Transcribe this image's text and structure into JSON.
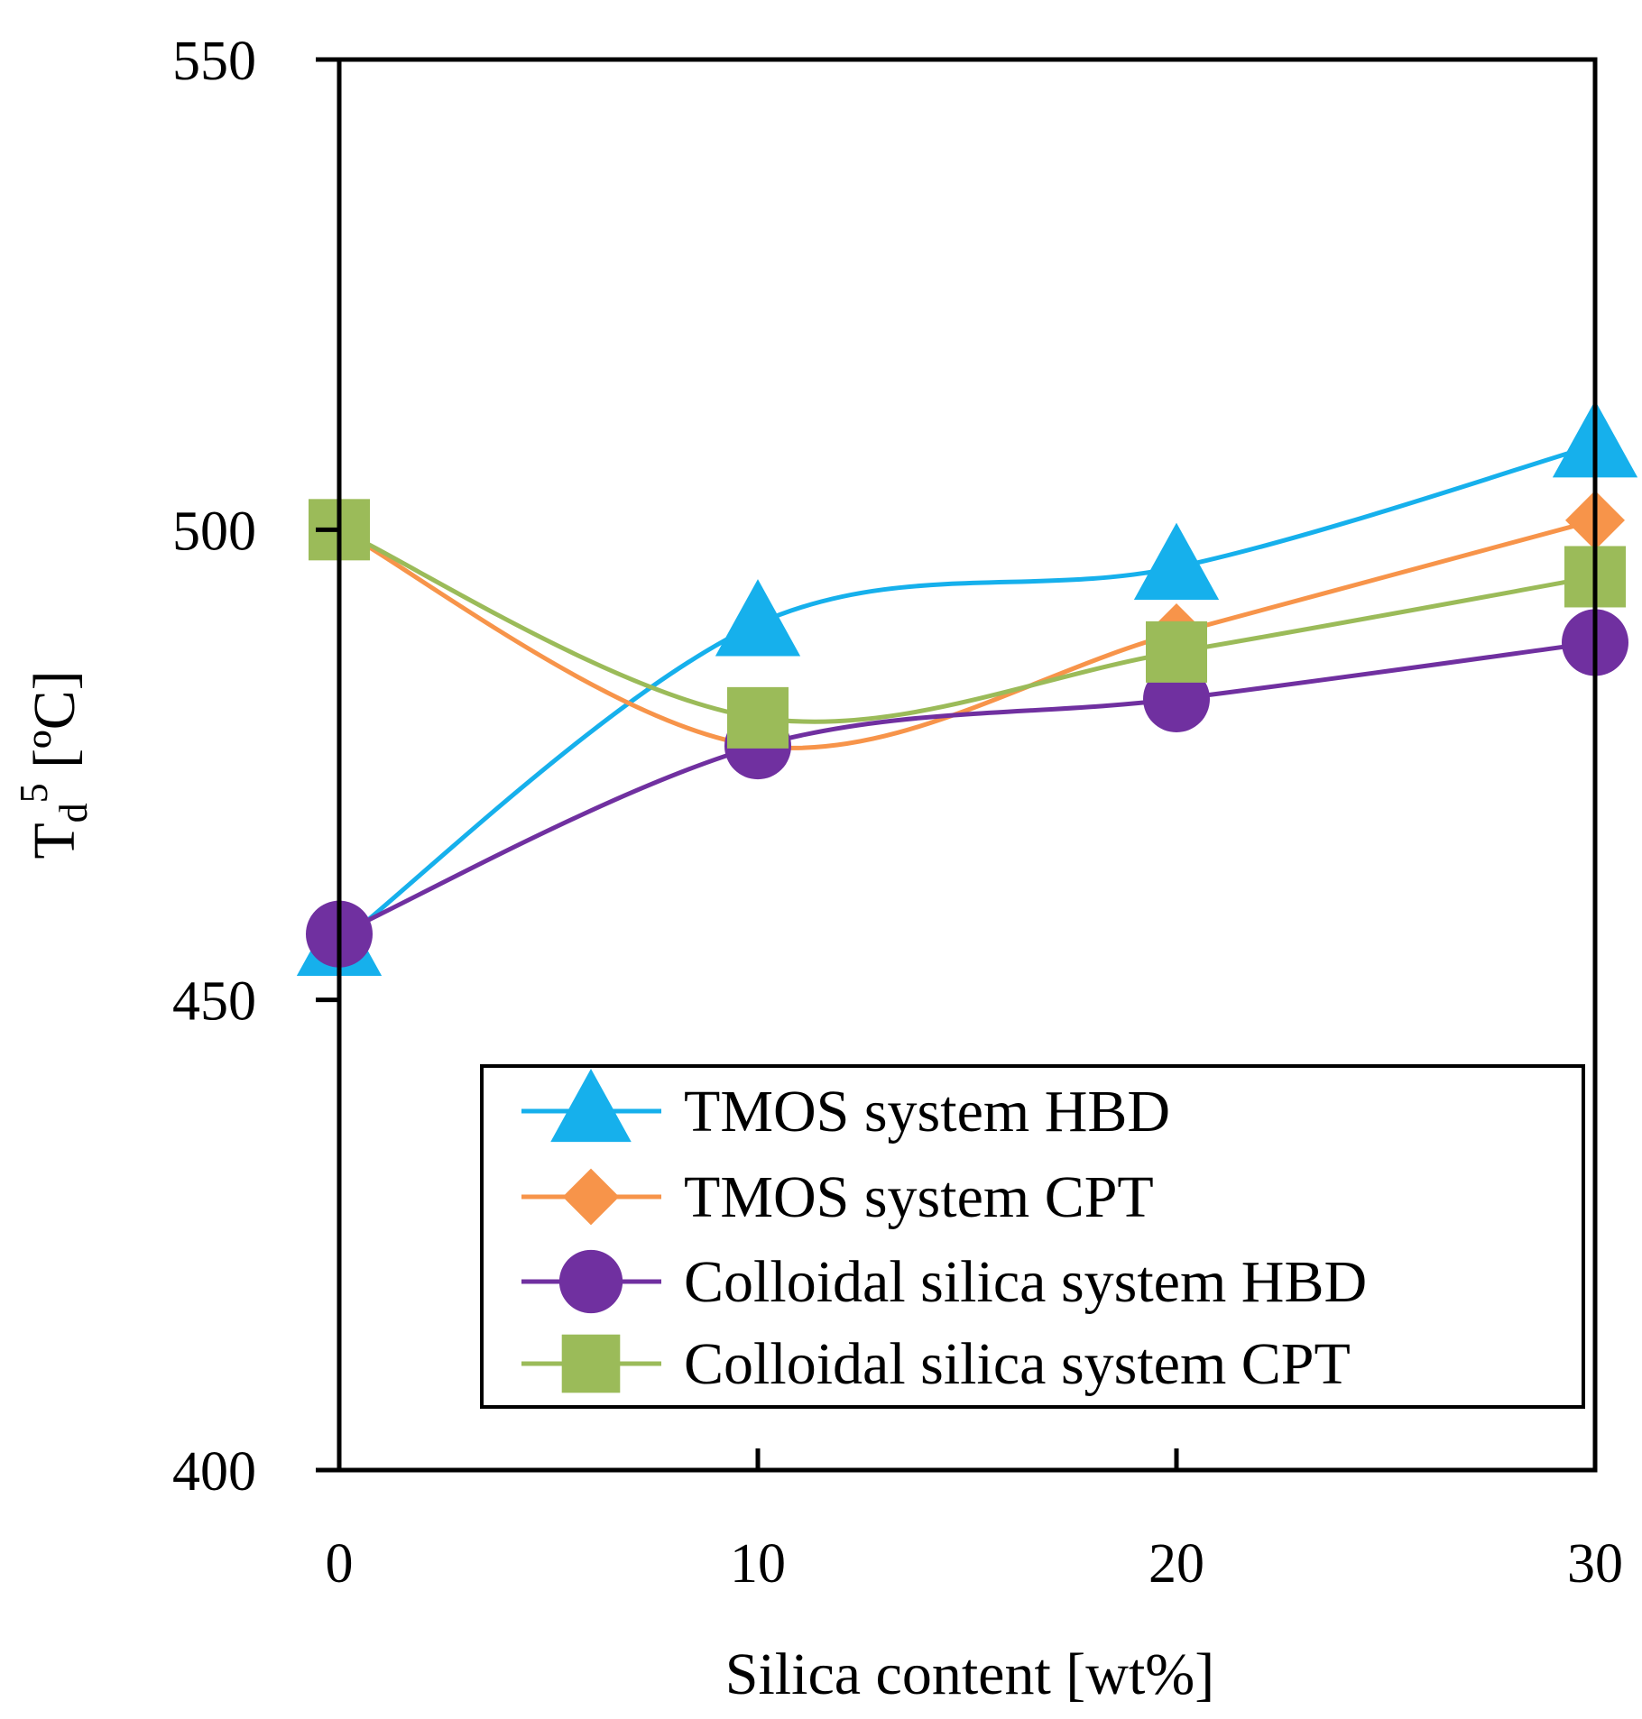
{
  "chart_data": {
    "type": "line",
    "title": "",
    "xlabel": "Silica content [wt%]",
    "ylabel_main": "T",
    "ylabel_sub": "d",
    "ylabel_sup": "5",
    "ylabel_unit": " [ºC]",
    "x": [
      0,
      10,
      20,
      30
    ],
    "xlim": [
      0,
      30
    ],
    "ylim": [
      400,
      550
    ],
    "xticks": [
      "0",
      "10",
      "20",
      "30"
    ],
    "yticks": [
      "400",
      "450",
      "500",
      "550"
    ],
    "grid": false,
    "legend_position": "bottom-right",
    "series": [
      {
        "name": "TMOS system HBD",
        "values": [
          456,
          490,
          496,
          509
        ],
        "color": "#16b0ec",
        "marker": "triangle"
      },
      {
        "name": "TMOS system CPT",
        "values": [
          500,
          477,
          489,
          501
        ],
        "color": "#f7944a",
        "marker": "diamond"
      },
      {
        "name": "Colloidal silica system HBD",
        "values": [
          457,
          477,
          482,
          488
        ],
        "color": "#7030a0",
        "marker": "circle"
      },
      {
        "name": "Colloidal silica system CPT",
        "values": [
          500,
          480,
          487,
          495
        ],
        "color": "#9bbb59",
        "marker": "square"
      }
    ]
  }
}
